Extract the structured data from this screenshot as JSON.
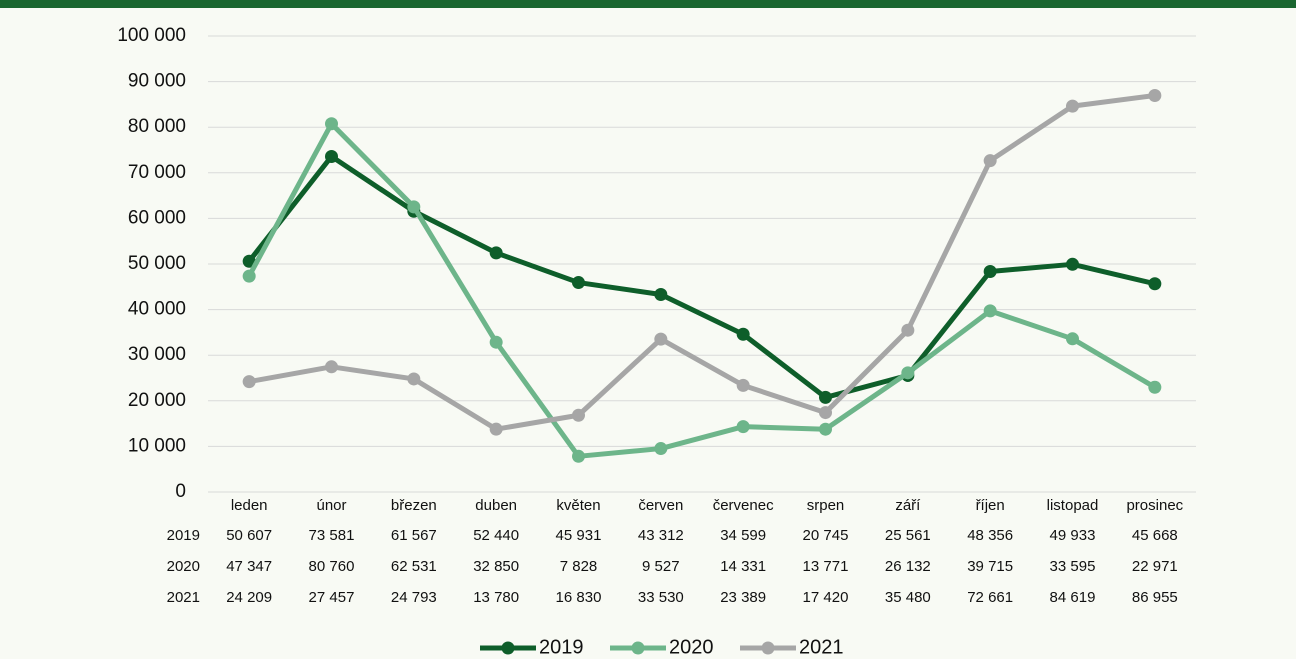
{
  "chart_data": {
    "type": "line",
    "categories": [
      "leden",
      "únor",
      "březen",
      "duben",
      "květen",
      "červen",
      "červenec",
      "srpen",
      "září",
      "říjen",
      "listopad",
      "prosinec"
    ],
    "series": [
      {
        "name": "2019",
        "color": "#0e5e2a",
        "values": [
          50607,
          73581,
          61567,
          52440,
          45931,
          43312,
          34599,
          20745,
          25561,
          48356,
          49933,
          45668
        ],
        "value_labels": [
          "50 607",
          "73 581",
          "61 567",
          "52 440",
          "45 931",
          "43 312",
          "34 599",
          "20 745",
          "25 561",
          "48 356",
          "49 933",
          "45 668"
        ]
      },
      {
        "name": "2020",
        "color": "#6db58a",
        "values": [
          47347,
          80760,
          62531,
          32850,
          7828,
          9527,
          14331,
          13771,
          26132,
          39715,
          33595,
          22971
        ],
        "value_labels": [
          "47 347",
          "80 760",
          "62 531",
          "32 850",
          "7 828",
          "9 527",
          "14 331",
          "13 771",
          "26 132",
          "39 715",
          "33 595",
          "22 971"
        ]
      },
      {
        "name": "2021",
        "color": "#a6a6a6",
        "values": [
          24209,
          27457,
          24793,
          13780,
          16830,
          33530,
          23389,
          17420,
          35480,
          72661,
          84619,
          86955
        ],
        "value_labels": [
          "24 209",
          "27 457",
          "24 793",
          "13 780",
          "16 830",
          "33 530",
          "23 389",
          "17 420",
          "35 480",
          "72 661",
          "84 619",
          "86 955"
        ]
      }
    ],
    "ylim": [
      0,
      100000
    ],
    "yticks": [
      0,
      {
        "value": 10000,
        "label": "10 000"
      },
      {
        "value": 20000,
        "label": "20 000"
      },
      {
        "value": 30000,
        "label": "30 000"
      },
      {
        "value": 40000,
        "label": "40 000"
      },
      {
        "value": 50000,
        "label": "50 000"
      },
      {
        "value": 60000,
        "label": "60 000"
      },
      {
        "value": 70000,
        "label": "70 000"
      },
      {
        "value": 80000,
        "label": "80 000"
      },
      {
        "value": 90000,
        "label": "90 000"
      },
      {
        "value": 100000,
        "label": "100 000"
      }
    ],
    "grid": true,
    "legend": "bottom"
  }
}
